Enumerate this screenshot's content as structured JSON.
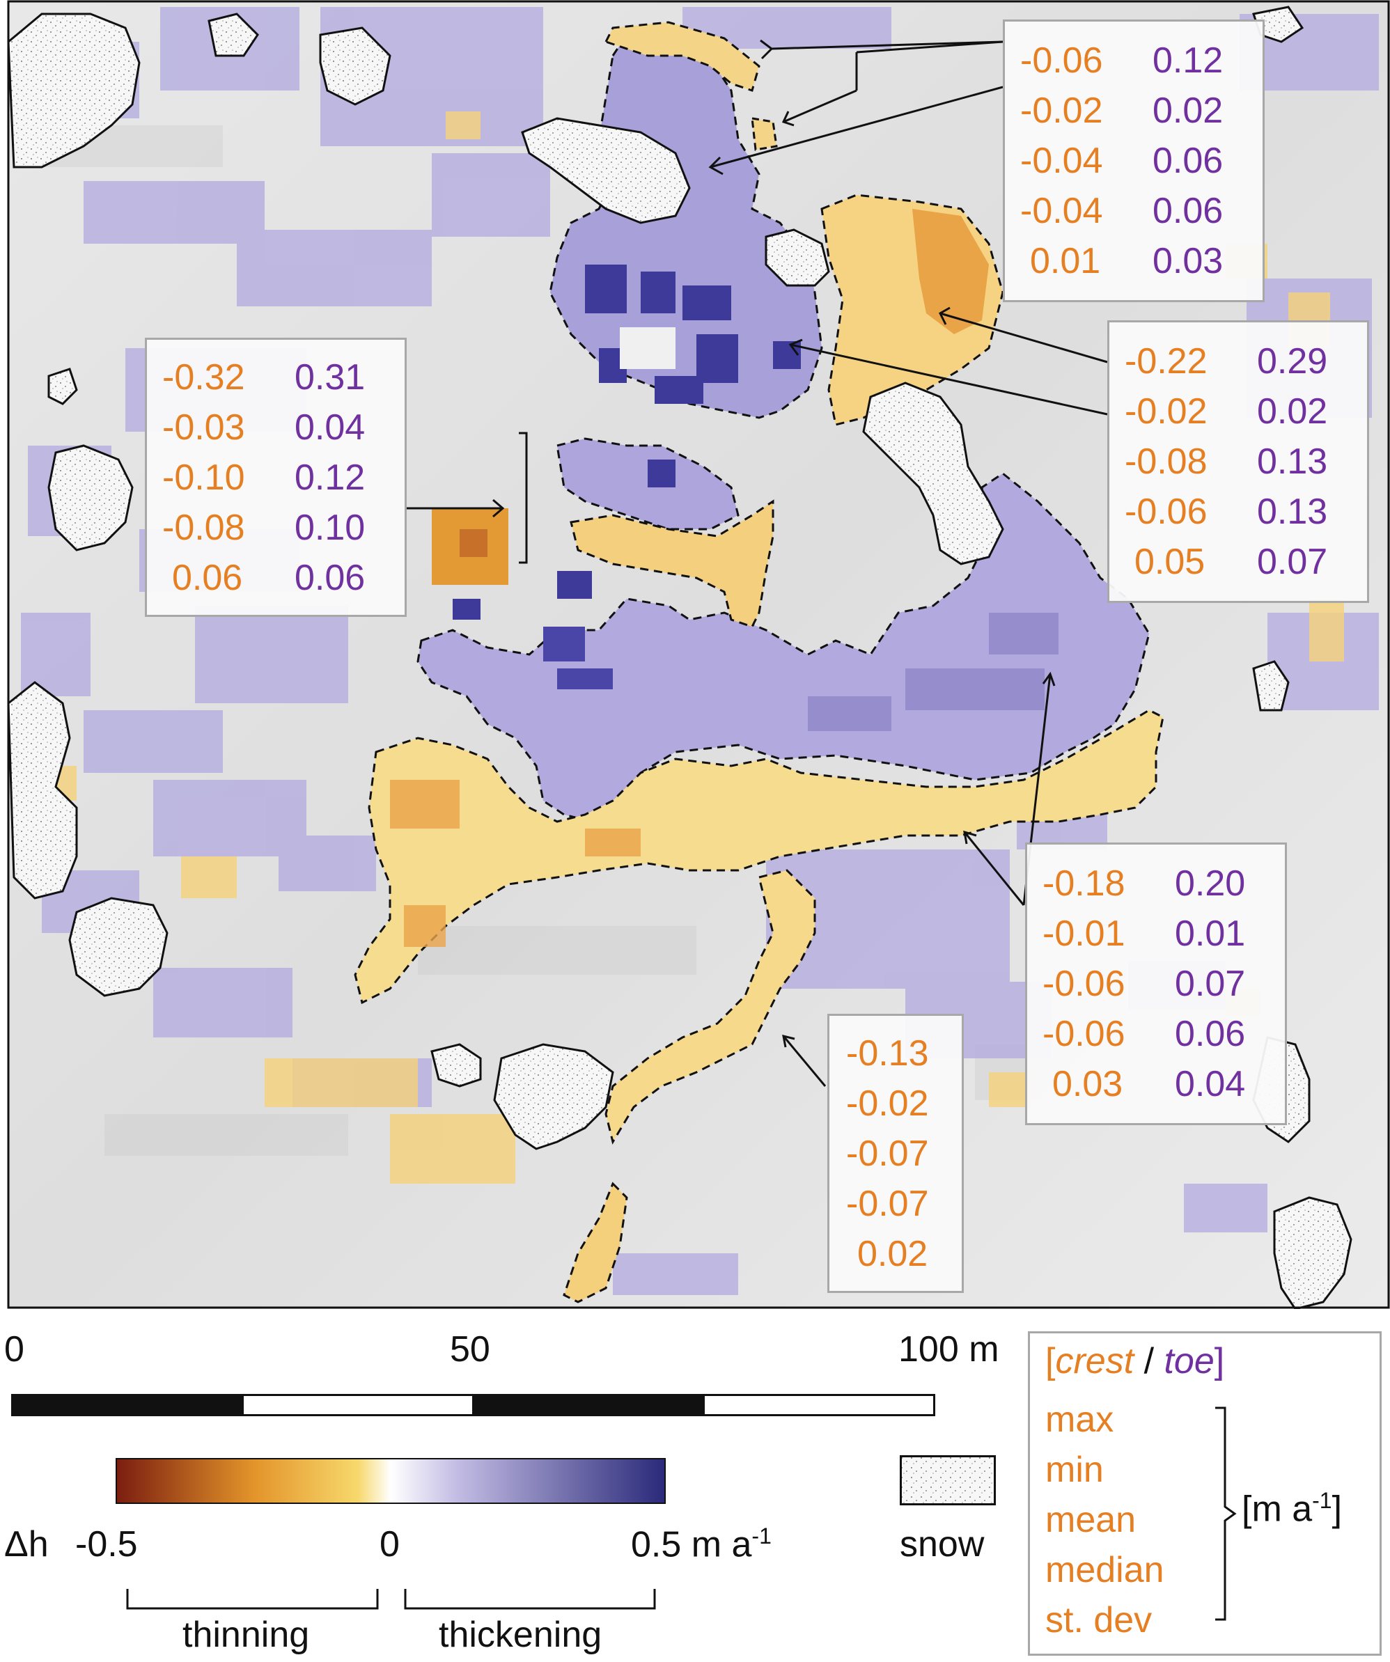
{
  "map": {
    "callouts": [
      {
        "id": "top-right",
        "crest": [
          "-0.06",
          "-0.02",
          "-0.04",
          "-0.04",
          "0.01"
        ],
        "toe": [
          "0.12",
          "0.02",
          "0.06",
          "0.06",
          "0.03"
        ]
      },
      {
        "id": "right-middle",
        "crest": [
          "-0.22",
          "-0.02",
          "-0.08",
          "-0.06",
          "0.05"
        ],
        "toe": [
          "0.29",
          "0.02",
          "0.13",
          "0.13",
          "0.07"
        ]
      },
      {
        "id": "left",
        "crest": [
          "-0.32",
          "-0.03",
          "-0.10",
          "-0.08",
          "0.06"
        ],
        "toe": [
          "0.31",
          "0.04",
          "0.12",
          "0.10",
          "0.06"
        ]
      },
      {
        "id": "bottom-right",
        "crest": [
          "-0.18",
          "-0.01",
          "-0.06",
          "-0.06",
          "0.03"
        ],
        "toe": [
          "0.20",
          "0.01",
          "0.07",
          "0.06",
          "0.04"
        ]
      },
      {
        "id": "bottom-middle",
        "crest": [
          "-0.13",
          "-0.02",
          "-0.07",
          "-0.07",
          "0.02"
        ]
      }
    ]
  },
  "scalebar": {
    "ticks": [
      "0",
      "50",
      "100 m"
    ]
  },
  "colorbar": {
    "symbol": "Δh",
    "min_label": "-0.5",
    "mid_label": "0",
    "max_label_value": "0.5 m a",
    "max_label_sup": "-1",
    "thinning_label": "thinning",
    "thickening_label": "thickening",
    "colors": {
      "thinning_dark": "#7b1e10",
      "thinning_mid": "#e3942a",
      "thinning_light": "#f7d86c",
      "zero": "#ffffff",
      "thickening_light": "#c3bde4",
      "thickening_dark": "#2b2a7a"
    }
  },
  "snow": {
    "label": "snow"
  },
  "legend": {
    "open_bracket": "[",
    "crest": "crest",
    "slash": " / ",
    "toe": "toe",
    "close_bracket": "]",
    "stats": [
      "max",
      "min",
      "mean",
      "median",
      "st. dev"
    ],
    "unit_prefix": "[m a",
    "unit_sup": "-1",
    "unit_suffix": "]"
  },
  "colors": {
    "crest": "#e67e22",
    "toe": "#7030a0"
  }
}
